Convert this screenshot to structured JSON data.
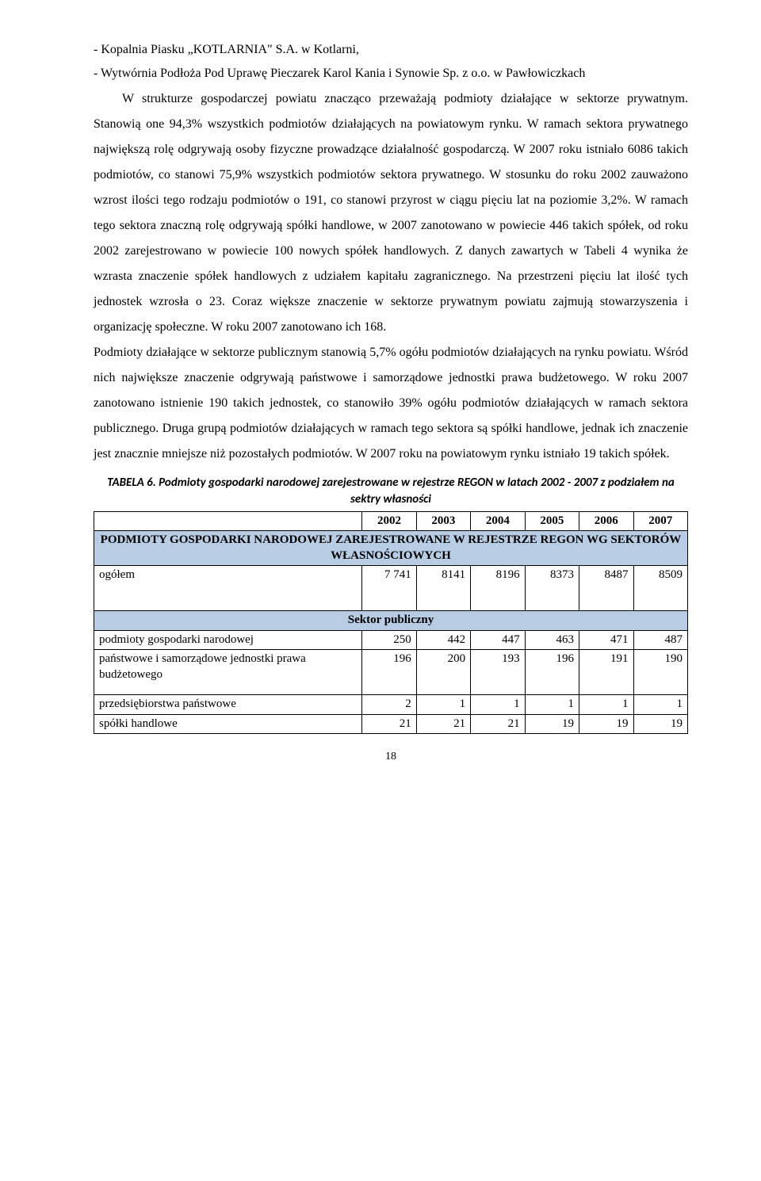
{
  "bullets": {
    "b1": "- Kopalnia Piasku „KOTLARNIA\" S.A. w Kotlarni,",
    "b2": "- Wytwórnia Podłoża Pod Uprawę Pieczarek Karol Kania i Synowie Sp. z o.o. w Pawłowiczkach"
  },
  "paras": {
    "p1": "W strukturze gospodarczej powiatu znacząco przeważają podmioty działające w sektorze prywatnym. Stanowią one 94,3% wszystkich podmiotów działających na powiatowym rynku. W ramach sektora prywatnego największą rolę odgrywają osoby fizyczne prowadzące działalność gospodarczą. W 2007 roku istniało 6086 takich podmiotów, co stanowi 75,9% wszystkich podmiotów sektora prywatnego. W stosunku do roku 2002 zauważono wzrost ilości tego rodzaju podmiotów o 191, co stanowi przyrost w ciągu pięciu lat na poziomie 3,2%. W ramach tego sektora znaczną rolę odgrywają spółki handlowe, w 2007 zanotowano w powiecie 446 takich spółek, od roku 2002 zarejestrowano w powiecie 100 nowych spółek handlowych. Z danych zawartych w Tabeli 4 wynika że wzrasta znaczenie spółek handlowych z udziałem kapitału zagranicznego. Na przestrzeni pięciu lat ilość tych jednostek wzrosła o 23. Coraz większe znaczenie w sektorze prywatnym powiatu zajmują stowarzyszenia i organizację społeczne. W roku 2007 zanotowano ich 168.",
    "p2": "Podmioty działające w sektorze publicznym stanowią 5,7% ogółu podmiotów działających na rynku powiatu. Wśród nich największe znaczenie odgrywają państwowe i samorządowe jednostki prawa budżetowego. W roku 2007 zanotowano istnienie 190 takich jednostek, co stanowiło 39% ogółu podmiotów działających w ramach sektora publicznego. Druga grupą podmiotów działających w ramach tego sektora są spółki handlowe, jednak ich znaczenie jest znacznie mniejsze niż pozostałych podmiotów. W 2007 roku na powiatowym rynku istniało 19 takich spółek."
  },
  "table": {
    "caption": "TABELA 6. Podmioty gospodarki narodowej zarejestrowane w rejestrze REGON w latach 2002 - 2007 z podziałem na sektry własności",
    "years": [
      "2002",
      "2003",
      "2004",
      "2005",
      "2006",
      "2007"
    ],
    "band1": "PODMIOTY GOSPODARKI NARODOWEJ ZAREJESTROWANE W REJESTRZE REGON WG SEKTORÓW WŁASNOŚCIOWYCH",
    "row_ogolem": {
      "label": "ogółem",
      "vals": [
        "7 741",
        "8141",
        "8196",
        "8373",
        "8487",
        "8509"
      ]
    },
    "band2": "Sektor publiczny",
    "row_pgn": {
      "label": "podmioty gospodarki narodowej",
      "vals": [
        "250",
        "442",
        "447",
        "463",
        "471",
        "487"
      ]
    },
    "row_pisj": {
      "label": "państwowe i samorządowe jednostki prawa budżetowego",
      "vals": [
        "196",
        "200",
        "193",
        "196",
        "191",
        "190"
      ]
    },
    "row_pp": {
      "label": "przedsiębiorstwa państwowe",
      "vals": [
        "2",
        "1",
        "1",
        "1",
        "1",
        "1"
      ]
    },
    "row_sh": {
      "label": "spółki handlowe",
      "vals": [
        "21",
        "21",
        "21",
        "19",
        "19",
        "19"
      ]
    }
  },
  "page_number": "18",
  "colors": {
    "band_bg": "#b8cce4"
  }
}
